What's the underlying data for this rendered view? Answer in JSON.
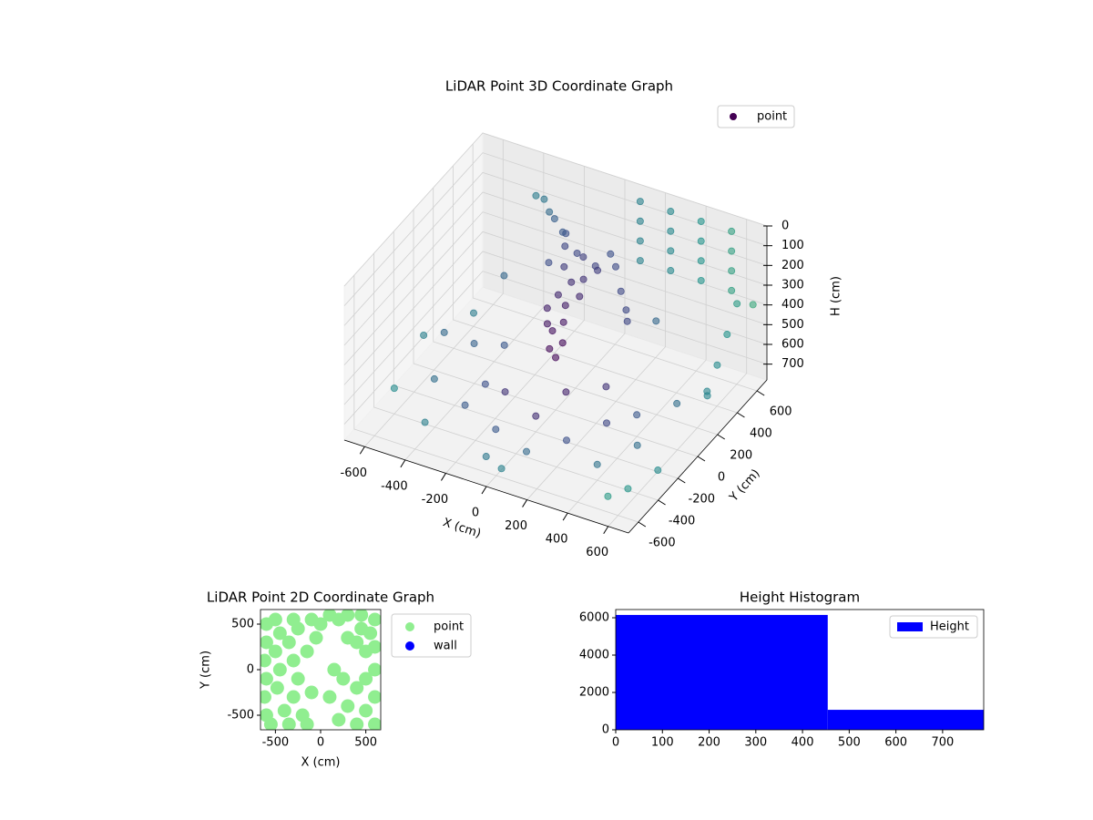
{
  "chart_data": [
    {
      "type": "scatter3d",
      "title": "LiDAR Point 3D Coordinate Graph",
      "xlabel": "X (cm)",
      "ylabel": "Y (cm)",
      "zlabel": "H (cm)",
      "xlim": [
        -700,
        700
      ],
      "ylim": [
        -700,
        700
      ],
      "zlim": [
        780,
        0
      ],
      "xticks": [
        -600,
        -400,
        -200,
        0,
        200,
        400,
        600
      ],
      "yticks": [
        -600,
        -400,
        -200,
        0,
        200,
        400,
        600
      ],
      "zticks": [
        0,
        100,
        200,
        300,
        400,
        500,
        600,
        700
      ],
      "colormap": "viridis",
      "legend": "upper right",
      "series": [
        {
          "name": "point",
          "color": "#440154",
          "x": [
            -100,
            -50,
            0,
            50,
            -80,
            -20,
            30,
            -120,
            -150,
            80,
            -60,
            -10,
            40,
            -90,
            0,
            -40,
            20,
            -30,
            -200,
            -250,
            -300,
            -350,
            -180,
            100,
            150,
            200,
            250,
            280,
            -70,
            10,
            -600,
            -500,
            -400,
            -300,
            -200,
            -100,
            0,
            100,
            200,
            300,
            400,
            500,
            600,
            -50,
            50,
            -450,
            -350,
            200,
            400,
            500,
            600,
            550,
            650,
            -650,
            -550,
            100,
            100,
            100,
            100,
            250,
            250,
            250,
            250,
            400,
            400,
            400,
            400,
            550,
            550,
            550,
            550,
            650,
            650,
            650,
            650,
            680,
            -400,
            -500,
            300,
            -200,
            100
          ],
          "y": [
            300,
            320,
            280,
            300,
            250,
            200,
            220,
            350,
            380,
            260,
            150,
            120,
            160,
            100,
            80,
            50,
            30,
            0,
            400,
            450,
            500,
            520,
            300,
            350,
            300,
            250,
            200,
            150,
            60,
            -20,
            -400,
            -200,
            -500,
            -300,
            -100,
            -400,
            -200,
            -500,
            -300,
            -100,
            -400,
            -200,
            -500,
            -600,
            -650,
            100,
            200,
            100,
            0,
            200,
            300,
            -600,
            -300,
            0,
            300,
            650,
            650,
            650,
            650,
            650,
            650,
            650,
            650,
            650,
            650,
            650,
            650,
            650,
            650,
            650,
            650,
            500,
            400,
            300,
            200,
            600,
            300,
            -100,
            400,
            -300,
            -100
          ],
          "z": [
            150,
            180,
            160,
            200,
            220,
            250,
            230,
            120,
            140,
            190,
            300,
            320,
            280,
            350,
            380,
            420,
            450,
            480,
            100,
            110,
            90,
            100,
            260,
            150,
            170,
            250,
            300,
            320,
            400,
            500,
            650,
            680,
            700,
            690,
            700,
            690,
            700,
            680,
            700,
            690,
            700,
            680,
            700,
            700,
            700,
            650,
            680,
            650,
            670,
            690,
            650,
            700,
            700,
            620,
            640,
            50,
            150,
            250,
            350,
            50,
            150,
            250,
            350,
            50,
            150,
            250,
            350,
            50,
            150,
            250,
            350,
            300,
            400,
            500,
            600,
            350,
            400,
            500,
            450,
            550,
            600
          ]
        }
      ]
    },
    {
      "type": "scatter",
      "title": "LiDAR Point 2D Coordinate Graph",
      "xlabel": "X (cm)",
      "ylabel": "Y (cm)",
      "xlim": [
        -665,
        665
      ],
      "ylim": [
        -660,
        660
      ],
      "xticks": [
        -500,
        0,
        500
      ],
      "yticks": [
        -500,
        0,
        500
      ],
      "legend": "outside right",
      "series": [
        {
          "name": "point",
          "color": "#90ee90",
          "x": [
            -600,
            -600,
            -620,
            -600,
            -620,
            -600,
            -550,
            -500,
            -450,
            -500,
            -450,
            -480,
            -400,
            -350,
            -300,
            -250,
            -350,
            -300,
            -250,
            -300,
            -200,
            -150,
            -100,
            -50,
            0,
            -150,
            100,
            200,
            300,
            450,
            600,
            550,
            450,
            600,
            500,
            400,
            300,
            600,
            500,
            400,
            600,
            300,
            500,
            200,
            400,
            600,
            100,
            250,
            150,
            -100
          ],
          "y": [
            500,
            300,
            100,
            -100,
            -300,
            -500,
            -600,
            550,
            400,
            200,
            0,
            -200,
            -450,
            -600,
            550,
            450,
            300,
            100,
            -100,
            -300,
            -500,
            -600,
            550,
            350,
            500,
            200,
            600,
            550,
            600,
            600,
            550,
            400,
            450,
            250,
            200,
            300,
            350,
            0,
            -100,
            -200,
            -300,
            -400,
            -450,
            -550,
            -600,
            -600,
            -300,
            -100,
            0,
            -250
          ]
        },
        {
          "name": "wall",
          "color": "#0000ff",
          "x": [],
          "y": []
        }
      ]
    },
    {
      "type": "histogram",
      "title": "Height Histogram",
      "name": "Height",
      "color": "#0000ff",
      "bins": [
        0,
        454,
        788
      ],
      "counts": [
        6150,
        1070
      ],
      "xlim": [
        0,
        788
      ],
      "ylim": [
        0,
        6440
      ],
      "xticks": [
        0,
        100,
        200,
        300,
        400,
        500,
        600,
        700
      ],
      "yticks": [
        0,
        2000,
        4000,
        6000
      ],
      "legend": "upper right"
    }
  ]
}
